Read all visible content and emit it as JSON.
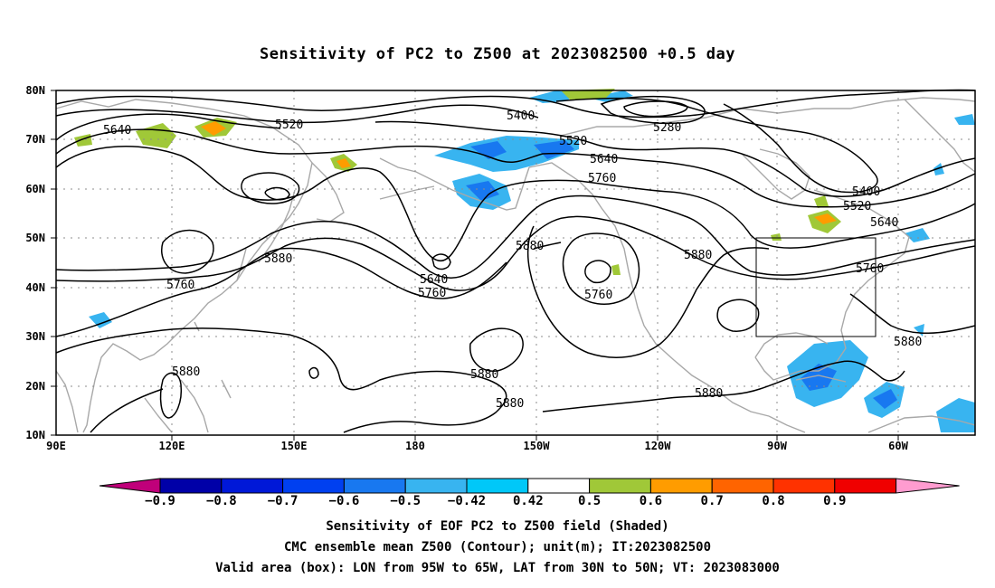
{
  "title": "Sensitivity of PC2 to Z500 at 2023082500 +0.5 day",
  "footer": {
    "line1": "Sensitivity of EOF PC2 to Z500 field (Shaded)",
    "line2": "CMC ensemble mean Z500 (Contour); unit(m); IT:2023082500",
    "line3": "Valid area (box): LON from 95W to 65W, LAT from 30N to 50N; VT: 2023083000"
  },
  "map": {
    "lat_labels": [
      "80N",
      "70N",
      "60N",
      "50N",
      "40N",
      "30N",
      "20N",
      "10N"
    ],
    "lon_labels": [
      "90E",
      "120E",
      "150E",
      "180",
      "150W",
      "120W",
      "90W",
      "60W"
    ],
    "contour_labels": [
      {
        "text": "5640"
      },
      {
        "text": "5520"
      },
      {
        "text": "5400"
      },
      {
        "text": "5280"
      },
      {
        "text": "5520"
      },
      {
        "text": "5640"
      },
      {
        "text": "5760"
      },
      {
        "text": "5400"
      },
      {
        "text": "5520"
      },
      {
        "text": "5640"
      },
      {
        "text": "5760"
      },
      {
        "text": "5880"
      },
      {
        "text": "5760"
      },
      {
        "text": "5880"
      },
      {
        "text": "5640"
      },
      {
        "text": "5760"
      },
      {
        "text": "5880"
      },
      {
        "text": "5760"
      },
      {
        "text": "5880"
      },
      {
        "text": "5880"
      },
      {
        "text": "5880"
      },
      {
        "text": "5880"
      },
      {
        "text": "5880"
      }
    ],
    "valid_box": {
      "lon_west": "95W",
      "lon_east": "65W",
      "lat_south": "30N",
      "lat_north": "50N"
    }
  },
  "colorbar": {
    "labels": [
      "-0.9",
      "-0.8",
      "-0.7",
      "-0.6",
      "-0.5",
      "-0.42",
      "0.42",
      "0.5",
      "0.6",
      "0.7",
      "0.8",
      "0.9"
    ],
    "colors": [
      "#c0007a",
      "#0000a8",
      "#0018d8",
      "#0040f0",
      "#1878f0",
      "#38b4f0",
      "#00c8f8",
      "#ffffff",
      "#a0c838",
      "#ff9c00",
      "#ff6400",
      "#ff3200",
      "#f00000",
      "#ff9cd0"
    ]
  },
  "colors": {
    "contour": "#000000",
    "coastline": "#a8a8a8",
    "grid": "#8c8c8c"
  }
}
